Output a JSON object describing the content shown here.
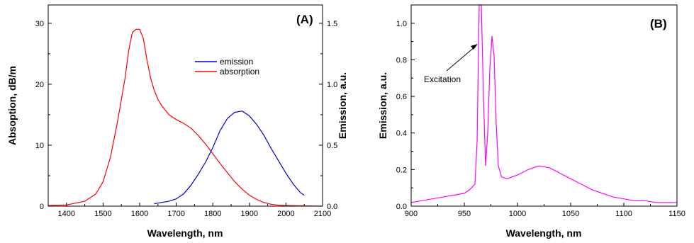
{
  "chart_data": [
    {
      "type": "line",
      "panel_label": "(A)",
      "xlabel": "Wavelength, nm",
      "ylabel_left": "Absoption, dB/m",
      "ylabel_right": "Emission, a.u.",
      "xlim": [
        1350,
        2100
      ],
      "ylim_left": [
        0,
        33
      ],
      "ylim_right": [
        0,
        1.65
      ],
      "xticks": [
        1400,
        1500,
        1600,
        1700,
        1800,
        1900,
        2000,
        2100
      ],
      "yticks_left": [
        0,
        10,
        20,
        30
      ],
      "yticks_right": [
        0.0,
        0.5,
        1.0,
        1.5
      ],
      "legend": [
        "emission",
        "absorption"
      ],
      "series": [
        {
          "name": "absorption",
          "axis": "left",
          "color": "#ff0000",
          "x": [
            1350,
            1400,
            1450,
            1480,
            1500,
            1520,
            1540,
            1560,
            1570,
            1580,
            1590,
            1600,
            1610,
            1620,
            1630,
            1640,
            1650,
            1660,
            1680,
            1700,
            1720,
            1740,
            1760,
            1780,
            1800,
            1820,
            1840,
            1860,
            1880,
            1900,
            1920,
            1940,
            1960,
            1980,
            2000,
            2050,
            2100
          ],
          "y": [
            0.1,
            0.2,
            0.8,
            2.0,
            4.0,
            8.0,
            14.0,
            21.0,
            25.5,
            28.5,
            29.0,
            29.0,
            27.5,
            24.0,
            21.0,
            19.0,
            17.5,
            16.5,
            15.0,
            14.2,
            13.6,
            12.8,
            11.6,
            10.2,
            8.6,
            7.0,
            5.5,
            4.0,
            2.8,
            1.8,
            1.1,
            0.6,
            0.3,
            0.15,
            0.1,
            0.05,
            0.0
          ]
        },
        {
          "name": "emission",
          "axis": "right",
          "color": "#0000cc",
          "x": [
            1640,
            1660,
            1680,
            1700,
            1720,
            1740,
            1760,
            1780,
            1800,
            1820,
            1840,
            1860,
            1880,
            1900,
            1920,
            1940,
            1960,
            1980,
            2000,
            2020,
            2040,
            2050
          ],
          "y": [
            0.02,
            0.03,
            0.04,
            0.06,
            0.1,
            0.17,
            0.26,
            0.36,
            0.48,
            0.62,
            0.72,
            0.77,
            0.78,
            0.74,
            0.67,
            0.58,
            0.47,
            0.37,
            0.27,
            0.18,
            0.11,
            0.09
          ]
        }
      ]
    },
    {
      "type": "line",
      "panel_label": "(B)",
      "xlabel": "Wavelength, nm",
      "ylabel": "Emission, a.u.",
      "xlim": [
        900,
        1150
      ],
      "ylim": [
        0,
        1.1
      ],
      "xticks": [
        900,
        950,
        1000,
        1050,
        1100,
        1150
      ],
      "yticks": [
        0.0,
        0.2,
        0.4,
        0.6,
        0.8,
        1.0
      ],
      "annotation": {
        "text": "Excitation",
        "points_to": [
          964,
          1.0
        ]
      },
      "series": [
        {
          "color": "#ff00ff",
          "x": [
            900,
            920,
            940,
            950,
            955,
            960,
            962,
            964,
            966,
            968,
            970,
            972,
            974,
            976,
            978,
            980,
            982,
            985,
            990,
            1000,
            1010,
            1020,
            1030,
            1040,
            1050,
            1060,
            1070,
            1080,
            1090,
            1100,
            1110,
            1120,
            1130,
            1140,
            1150
          ],
          "y": [
            0.02,
            0.04,
            0.06,
            0.07,
            0.09,
            0.12,
            0.35,
            1.1,
            1.1,
            0.6,
            0.22,
            0.4,
            0.75,
            0.93,
            0.82,
            0.45,
            0.22,
            0.16,
            0.15,
            0.17,
            0.2,
            0.22,
            0.21,
            0.18,
            0.15,
            0.12,
            0.09,
            0.07,
            0.05,
            0.04,
            0.03,
            0.03,
            0.02,
            0.02,
            0.02
          ]
        }
      ]
    }
  ]
}
